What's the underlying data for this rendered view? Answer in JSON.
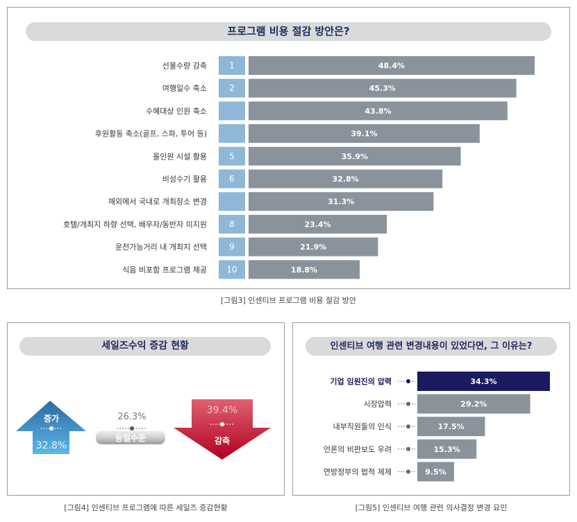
{
  "fig3": {
    "title": "프로그램 비용 절감 방안은?",
    "caption": "[그림3] 인센티브 프로그램 비용 절감 방안"
  },
  "fig4": {
    "title": "세일즈수익 증감 현황",
    "caption": "[그림4] 인센티브 프로그램에 따른 세일즈 증감현황",
    "increase": {
      "label": "증가",
      "value": "32.8%"
    },
    "same": {
      "label": "동일수준",
      "value": "26.3%"
    },
    "decrease": {
      "label": "감축",
      "value": "39.4%"
    }
  },
  "fig5": {
    "title": "인센티브 여행 관련 변경내용이 있었다면, 그 이유는?",
    "caption": "[그림5] 인센티브 여행 관련 의사결정 변경 요인"
  },
  "colors": {
    "bar": "#8a939c",
    "rank": "#8fb8d8",
    "highlight": "#1a1a5e",
    "increase": "#3f8fc6",
    "decrease": "#c8102e"
  },
  "chart_data": [
    {
      "type": "bar",
      "title": "프로그램 비용 절감 방안은?",
      "categories": [
        "선물수량 감축",
        "여행일수 축소",
        "수혜대상 인원 축소",
        "후원활동 축소(골프, 스파, 투어 등)",
        "올인원 시설 활용",
        "비성수기 활용",
        "해외에서 국내로 개최장소 변경",
        "호텔/개최지 하향 선택, 배우자/동반자 미지원",
        "운전가능거리 내 개최지 선택",
        "식음 비포함 프로그램 제공"
      ],
      "ranks": [
        "1",
        "2",
        "",
        "",
        "5",
        "6",
        "",
        "8",
        "9",
        "10"
      ],
      "values": [
        48.4,
        45.3,
        43.8,
        39.1,
        35.9,
        32.8,
        31.3,
        23.4,
        21.9,
        18.8
      ],
      "labels": [
        "48.4%",
        "45.3%",
        "43.8%",
        "39.1%",
        "35.9%",
        "32.8%",
        "31.3%",
        "23.4%",
        "21.9%",
        "18.8%"
      ]
    },
    {
      "type": "bar",
      "title": "세일즈수익 증감 현황",
      "categories": [
        "증가",
        "동일수준",
        "감축"
      ],
      "values": [
        32.8,
        26.3,
        39.4
      ]
    },
    {
      "type": "bar",
      "title": "인센티브 여행 관련 변경내용이 있었다면, 그 이유는?",
      "categories": [
        "기업 임원진의 압력",
        "시장압력",
        "내부직원들의 인식",
        "언론의 비판보도 우려",
        "연방정부의 법적 제제"
      ],
      "values": [
        34.3,
        29.2,
        17.5,
        15.3,
        9.5
      ],
      "labels": [
        "34.3%",
        "29.2%",
        "17.5%",
        "15.3%",
        "9.5%"
      ]
    }
  ]
}
